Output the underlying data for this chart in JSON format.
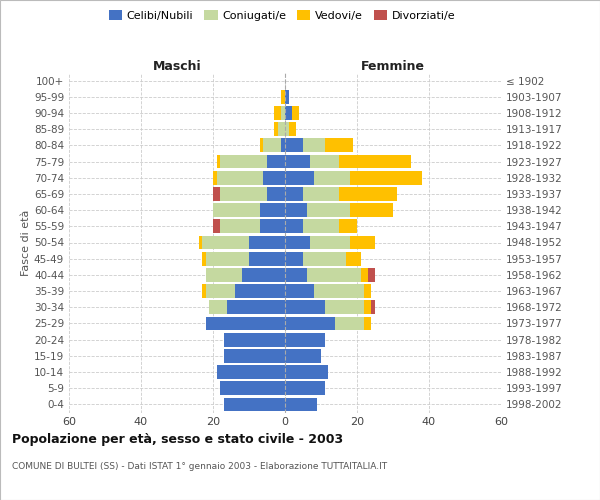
{
  "age_groups": [
    "0-4",
    "5-9",
    "10-14",
    "15-19",
    "20-24",
    "25-29",
    "30-34",
    "35-39",
    "40-44",
    "45-49",
    "50-54",
    "55-59",
    "60-64",
    "65-69",
    "70-74",
    "75-79",
    "80-84",
    "85-89",
    "90-94",
    "95-99",
    "100+"
  ],
  "birth_years": [
    "1998-2002",
    "1993-1997",
    "1988-1992",
    "1983-1987",
    "1978-1982",
    "1973-1977",
    "1968-1972",
    "1963-1967",
    "1958-1962",
    "1953-1957",
    "1948-1952",
    "1943-1947",
    "1938-1942",
    "1933-1937",
    "1928-1932",
    "1923-1927",
    "1918-1922",
    "1913-1917",
    "1908-1912",
    "1903-1907",
    "≤ 1902"
  ],
  "maschi": {
    "celibi": [
      17,
      18,
      19,
      17,
      17,
      22,
      16,
      14,
      12,
      10,
      10,
      7,
      7,
      5,
      6,
      5,
      1,
      0,
      0,
      0,
      0
    ],
    "coniugati": [
      0,
      0,
      0,
      0,
      0,
      0,
      5,
      8,
      10,
      12,
      13,
      11,
      13,
      13,
      13,
      13,
      5,
      2,
      1,
      0,
      0
    ],
    "vedovi": [
      0,
      0,
      0,
      0,
      0,
      0,
      0,
      1,
      0,
      1,
      1,
      0,
      0,
      0,
      1,
      1,
      1,
      1,
      2,
      1,
      0
    ],
    "divorziati": [
      0,
      0,
      0,
      0,
      0,
      0,
      0,
      0,
      0,
      0,
      0,
      2,
      0,
      2,
      0,
      0,
      0,
      0,
      0,
      0,
      0
    ]
  },
  "femmine": {
    "nubili": [
      9,
      11,
      12,
      10,
      11,
      14,
      11,
      8,
      6,
      5,
      7,
      5,
      6,
      5,
      8,
      7,
      5,
      0,
      2,
      1,
      0
    ],
    "coniugate": [
      0,
      0,
      0,
      0,
      0,
      8,
      11,
      14,
      15,
      12,
      11,
      10,
      12,
      10,
      10,
      8,
      6,
      1,
      0,
      0,
      0
    ],
    "vedove": [
      0,
      0,
      0,
      0,
      0,
      2,
      2,
      2,
      2,
      4,
      7,
      5,
      12,
      16,
      20,
      20,
      8,
      2,
      2,
      0,
      0
    ],
    "divorziate": [
      0,
      0,
      0,
      0,
      0,
      0,
      1,
      0,
      2,
      0,
      0,
      0,
      0,
      0,
      0,
      0,
      0,
      0,
      0,
      0,
      0
    ]
  },
  "colors": {
    "celibi": "#4472c4",
    "coniugati": "#c5d9a0",
    "vedovi": "#ffc000",
    "divorziati": "#c0504d"
  },
  "xlim": 60,
  "title": "Popolazione per età, sesso e stato civile - 2003",
  "subtitle": "COMUNE DI BULTEI (SS) - Dati ISTAT 1° gennaio 2003 - Elaborazione TUTTAITALIA.IT",
  "header_left": "Maschi",
  "header_right": "Femmine",
  "ylabel_left": "Fasce di età",
  "legend_labels": [
    "Celibi/Nubili",
    "Coniugati/e",
    "Vedovi/e",
    "Divorziati/e"
  ],
  "bg_color": "#ffffff",
  "grid_color": "#cccccc"
}
